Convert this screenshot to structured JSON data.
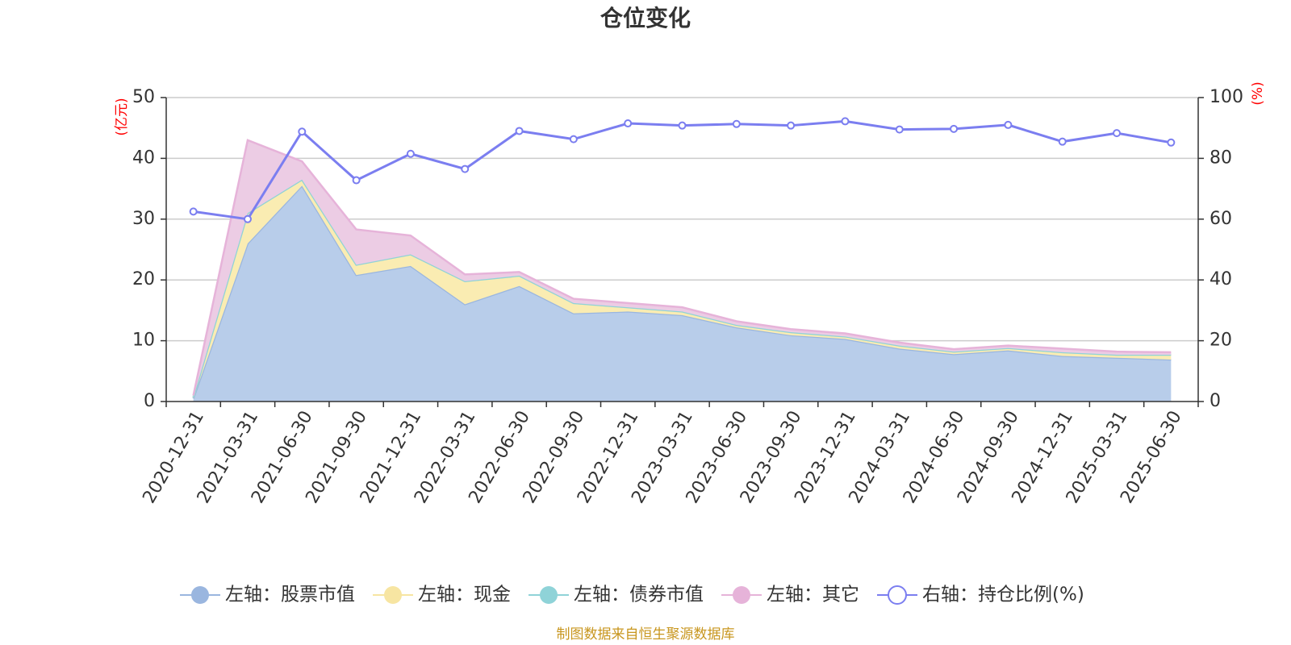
{
  "chart_data": {
    "type": "area",
    "title": "仓位变化",
    "source_note": "制图数据来自恒生聚源数据库",
    "left_axis": {
      "unit": "(亿元)",
      "min": 0,
      "max": 50,
      "ticks": [
        0,
        10,
        20,
        30,
        40,
        50
      ]
    },
    "right_axis": {
      "unit": "(%)",
      "min": 0,
      "max": 100,
      "ticks": [
        0,
        20,
        40,
        60,
        80,
        100
      ]
    },
    "categories": [
      "2020-12-31",
      "2021-03-31",
      "2021-06-30",
      "2021-09-30",
      "2021-12-31",
      "2022-03-31",
      "2022-06-30",
      "2022-09-30",
      "2022-12-31",
      "2023-03-31",
      "2023-06-30",
      "2023-09-30",
      "2023-12-31",
      "2024-03-31",
      "2024-06-30",
      "2024-09-30",
      "2024-12-31",
      "2025-03-31",
      "2025-06-30"
    ],
    "grid": true,
    "legend_position": "bottom",
    "series": [
      {
        "name": "左轴：股票市值",
        "axis": "left",
        "stacked": true,
        "color": "#9ab6df",
        "fill": "#b8cdea",
        "values": [
          0.5,
          26.0,
          35.5,
          20.8,
          22.3,
          16.0,
          19.0,
          14.5,
          14.8,
          14.2,
          12.2,
          10.9,
          10.3,
          8.7,
          7.8,
          8.4,
          7.5,
          7.2,
          6.9
        ]
      },
      {
        "name": "左轴：现金",
        "axis": "left",
        "stacked": true,
        "color": "#f7e5a2",
        "fill": "#faecb2",
        "values": [
          0.2,
          5.0,
          1.0,
          1.7,
          1.9,
          3.8,
          1.7,
          1.7,
          0.7,
          0.6,
          0.4,
          0.5,
          0.4,
          0.5,
          0.4,
          0.4,
          0.6,
          0.5,
          0.8
        ]
      },
      {
        "name": "左轴：债券市值",
        "axis": "left",
        "stacked": true,
        "color": "#8fd3d8",
        "fill": "#a8dde0",
        "values": [
          0,
          0,
          0,
          0,
          0,
          0,
          0,
          0,
          0,
          0,
          0,
          0,
          0,
          0,
          0,
          0,
          0,
          0,
          0
        ]
      },
      {
        "name": "左轴：其它",
        "axis": "left",
        "stacked": true,
        "color": "#e6b3d9",
        "fill": "#ecccE4",
        "values": [
          0.3,
          12.0,
          3.0,
          5.8,
          3.1,
          1.1,
          0.6,
          0.7,
          0.7,
          0.7,
          0.6,
          0.5,
          0.5,
          0.5,
          0.4,
          0.4,
          0.6,
          0.5,
          0.4
        ]
      },
      {
        "name": "右轴：持仓比例(%)",
        "axis": "right",
        "type": "line",
        "color": "#7b7ef0",
        "values": [
          62.5,
          60.0,
          88.8,
          72.8,
          81.5,
          76.5,
          89.0,
          86.3,
          91.5,
          90.8,
          91.3,
          90.8,
          92.2,
          89.5,
          89.7,
          91.0,
          85.5,
          88.3,
          85.2
        ]
      }
    ]
  }
}
